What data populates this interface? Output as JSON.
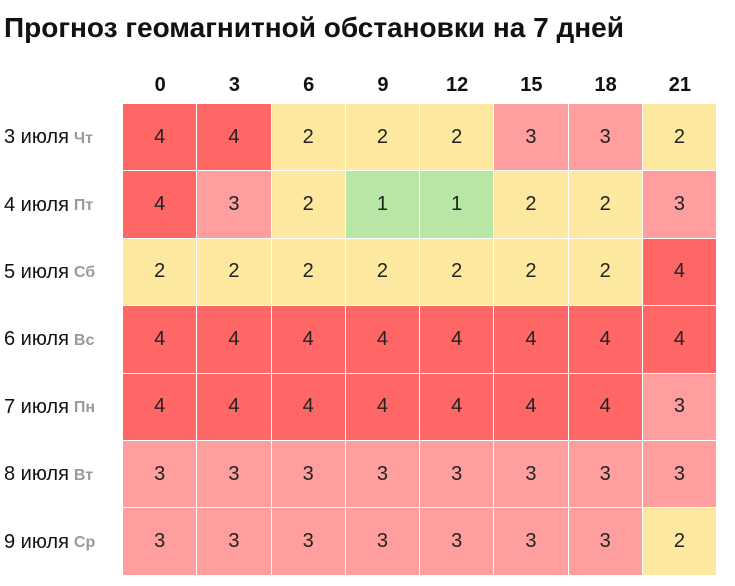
{
  "chart_data": {
    "type": "heatmap",
    "title": "Прогноз геомагнитной обстановки на 7 дней",
    "columns": [
      "0",
      "3",
      "6",
      "9",
      "12",
      "15",
      "18",
      "21"
    ],
    "rows": [
      {
        "date": "3 июля",
        "day": "Чт",
        "values": [
          4,
          4,
          2,
          2,
          2,
          3,
          3,
          2
        ]
      },
      {
        "date": "4 июля",
        "day": "Пт",
        "values": [
          4,
          3,
          2,
          1,
          1,
          2,
          2,
          3
        ]
      },
      {
        "date": "5 июля",
        "day": "Сб",
        "values": [
          2,
          2,
          2,
          2,
          2,
          2,
          2,
          4
        ]
      },
      {
        "date": "6 июля",
        "day": "Вс",
        "values": [
          4,
          4,
          4,
          4,
          4,
          4,
          4,
          4
        ]
      },
      {
        "date": "7 июля",
        "day": "Пн",
        "values": [
          4,
          4,
          4,
          4,
          4,
          4,
          4,
          3
        ]
      },
      {
        "date": "8 июля",
        "day": "Вт",
        "values": [
          3,
          3,
          3,
          3,
          3,
          3,
          3,
          3
        ]
      },
      {
        "date": "9 июля",
        "day": "Ср",
        "values": [
          3,
          3,
          3,
          3,
          3,
          3,
          3,
          2
        ]
      }
    ],
    "colors": {
      "1": "#b8e6a4",
      "2": "#fde8a0",
      "3": "#ff9e9e",
      "4": "#ff6666"
    }
  }
}
